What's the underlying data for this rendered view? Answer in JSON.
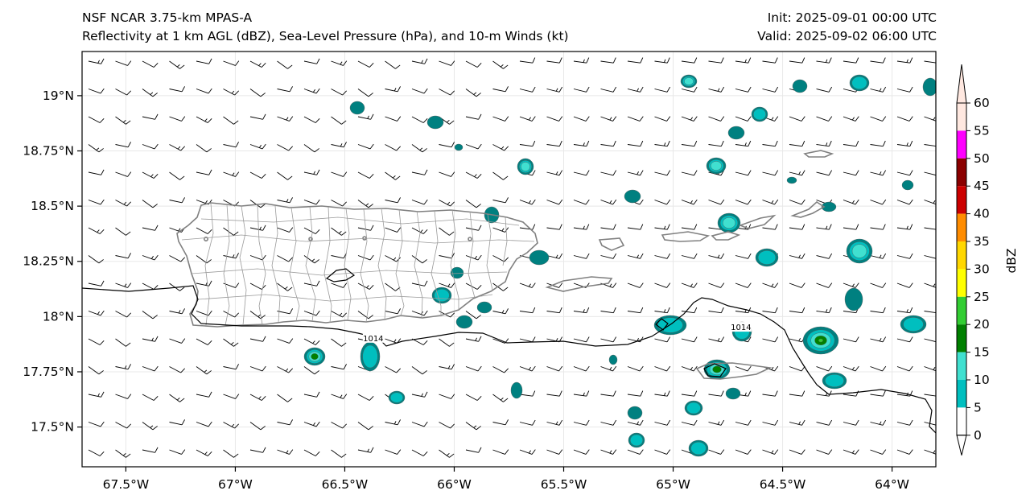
{
  "header": {
    "model": "NSF NCAR 3.75-km MPAS-A",
    "fields": "Reflectivity at 1 km AGL (dBZ), Sea-Level Pressure (hPa), and 10-m Winds (kt)",
    "init": "Init: 2025-09-01 00:00 UTC",
    "valid": "Valid: 2025-09-02 06:00 UTC"
  },
  "map": {
    "lon_range": [
      -67.7,
      -63.8
    ],
    "lat_range": [
      17.32,
      19.2
    ],
    "lon_ticks": [
      {
        "value": -67.5,
        "label": "67.5°W"
      },
      {
        "value": -67.0,
        "label": "67°W"
      },
      {
        "value": -66.5,
        "label": "66.5°W"
      },
      {
        "value": -66.0,
        "label": "66°W"
      },
      {
        "value": -65.5,
        "label": "65.5°W"
      },
      {
        "value": -65.0,
        "label": "65°W"
      },
      {
        "value": -64.5,
        "label": "64.5°W"
      },
      {
        "value": -64.0,
        "label": "64°W"
      }
    ],
    "lat_ticks": [
      {
        "value": 19.0,
        "label": "19°N"
      },
      {
        "value": 18.75,
        "label": "18.75°N"
      },
      {
        "value": 18.5,
        "label": "18.5°N"
      },
      {
        "value": 18.25,
        "label": "18.25°N"
      },
      {
        "value": 18.0,
        "label": "18°N"
      },
      {
        "value": 17.75,
        "label": "17.75°N"
      },
      {
        "value": 17.5,
        "label": "17.5°N"
      }
    ],
    "isobar_labels": [
      {
        "text": "1014",
        "lon": -66.37,
        "lat": 17.9
      },
      {
        "text": "1014",
        "lon": -64.69,
        "lat": 17.95
      }
    ],
    "colors": {
      "coast": "#808080",
      "isobar": "#000000",
      "grid": "#e8e8e8"
    }
  },
  "colorbar": {
    "label": "dBZ",
    "levels": [
      "0",
      "5",
      "10",
      "15",
      "20",
      "25",
      "30",
      "35",
      "40",
      "45",
      "50",
      "55",
      "60"
    ],
    "colors": [
      "#ffffff",
      "#008080",
      "#00bfbf",
      "#40e0d0",
      "#008000",
      "#32cd32",
      "#ffff00",
      "#ffd700",
      "#ff8c00",
      "#cc0000",
      "#8b0000",
      "#ff00ff",
      "#ffe8e0"
    ]
  }
}
